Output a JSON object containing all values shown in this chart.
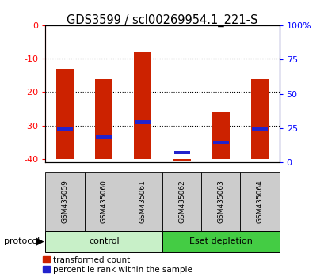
{
  "title": "GDS3599 / scl00269954.1_221-S",
  "samples": [
    "GSM435059",
    "GSM435060",
    "GSM435061",
    "GSM435062",
    "GSM435063",
    "GSM435064"
  ],
  "red_tops": [
    -13.0,
    -16.0,
    -8.0,
    -40.5,
    -26.0,
    -16.0
  ],
  "blue_markers": [
    -31.0,
    -33.5,
    -29.0,
    -38.0,
    -35.0,
    -31.0
  ],
  "ylim_left": [
    -41,
    0
  ],
  "ylim_right": [
    0,
    100
  ],
  "yticks_left": [
    0,
    -10,
    -20,
    -30,
    -40
  ],
  "yticks_right": [
    0,
    25,
    50,
    75,
    100
  ],
  "groups": [
    {
      "label": "control",
      "n": 3,
      "color": "#c8f0c8"
    },
    {
      "label": "Eset depletion",
      "n": 3,
      "color": "#44cc44"
    }
  ],
  "protocol_label": "protocol",
  "legend_red": "transformed count",
  "legend_blue": "percentile rank within the sample",
  "bar_color": "#cc2200",
  "marker_color": "#2222cc",
  "bg_plot": "#ffffff",
  "bg_label": "#cccccc",
  "bar_width": 0.45,
  "title_fontsize": 10.5,
  "tick_fontsize": 8,
  "sample_fontsize": 6.5,
  "group_fontsize": 8,
  "legend_fontsize": 7.5
}
